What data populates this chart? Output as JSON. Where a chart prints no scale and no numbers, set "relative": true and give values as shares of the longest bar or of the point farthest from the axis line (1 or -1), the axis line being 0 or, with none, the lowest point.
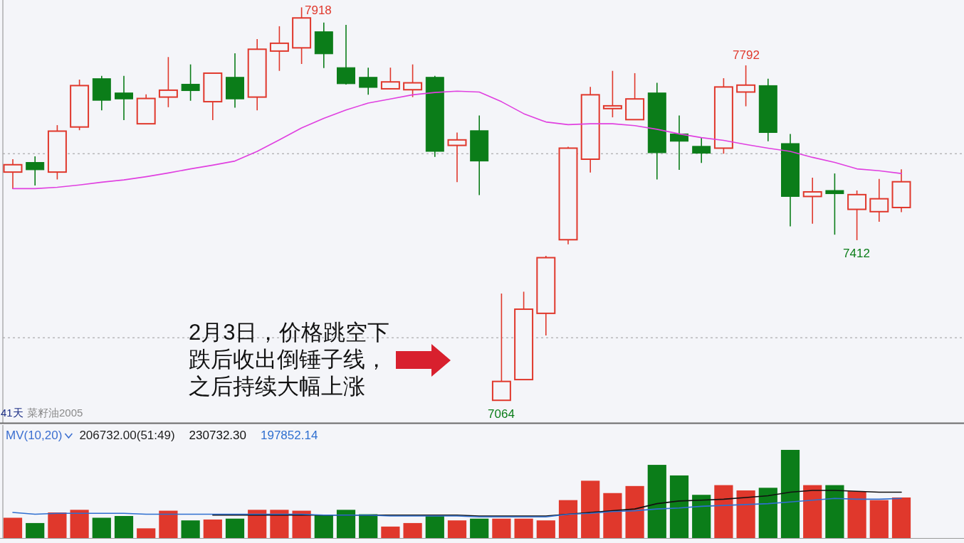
{
  "chart_data": [
    {
      "type": "candlestick",
      "categories": [
        null,
        null,
        null,
        null,
        null,
        null,
        null,
        null,
        null,
        null,
        null,
        null,
        null,
        null,
        null,
        null,
        null,
        null,
        null,
        null,
        null,
        null,
        null,
        null,
        null,
        null,
        null,
        null,
        null,
        null,
        null,
        null,
        null,
        null,
        null,
        null,
        null,
        null,
        null,
        null,
        null
      ],
      "ohlc": [
        [
          7560,
          7588,
          7523,
          7576
        ],
        [
          7581,
          7594,
          7531,
          7565
        ],
        [
          7560,
          7662,
          7544,
          7649
        ],
        [
          7658,
          7761,
          7651,
          7748
        ],
        [
          7763,
          7769,
          7694,
          7716
        ],
        [
          7732,
          7769,
          7673,
          7719
        ],
        [
          7665,
          7729,
          7664,
          7720
        ],
        [
          7723,
          7810,
          7701,
          7738
        ],
        [
          7751,
          7794,
          7715,
          7737
        ],
        [
          7713,
          7775,
          7673,
          7775
        ],
        [
          7766,
          7818,
          7700,
          7719
        ],
        [
          7723,
          7849,
          7694,
          7827
        ],
        [
          7823,
          7877,
          7780,
          7840
        ],
        [
          7830,
          7918,
          7795,
          7895
        ],
        [
          7865,
          7885,
          7786,
          7817
        ],
        [
          7787,
          7880,
          7750,
          7752
        ],
        [
          7766,
          7787,
          7728,
          7744
        ],
        [
          7741,
          7787,
          7740,
          7756
        ],
        [
          7739,
          7794,
          7723,
          7754
        ],
        [
          7766,
          7769,
          7593,
          7605
        ],
        [
          7618,
          7646,
          7538,
          7630
        ],
        [
          7650,
          7683,
          7510,
          7584
        ],
        [
          7064,
          7296,
          7064,
          7105
        ],
        [
          7109,
          7300,
          7108,
          7262
        ],
        [
          7253,
          7378,
          7205,
          7374
        ],
        [
          7413,
          7615,
          7403,
          7612
        ],
        [
          7588,
          7745,
          7559,
          7728
        ],
        [
          7698,
          7780,
          7679,
          7704
        ],
        [
          7674,
          7775,
          7673,
          7719
        ],
        [
          7732,
          7754,
          7544,
          7602
        ],
        [
          7643,
          7683,
          7565,
          7627
        ],
        [
          7616,
          7636,
          7580,
          7601
        ],
        [
          7612,
          7764,
          7600,
          7745
        ],
        [
          7734,
          7792,
          7703,
          7749
        ],
        [
          7748,
          7763,
          7627,
          7646
        ],
        [
          7622,
          7643,
          7442,
          7507
        ],
        [
          7507,
          7548,
          7448,
          7517
        ],
        [
          7520,
          7557,
          7424,
          7513
        ],
        [
          7479,
          7520,
          7412,
          7511
        ],
        [
          7474,
          7545,
          7452,
          7502
        ],
        [
          7483,
          7566,
          7473,
          7539
        ]
      ],
      "colors": [
        "#e0382c",
        "#0b7d19",
        "#e0382c",
        "#e0382c",
        "#0b7d19",
        "#0b7d19",
        "#e0382c",
        "#e0382c",
        "#0b7d19",
        "#e0382c",
        "#0b7d19",
        "#e0382c",
        "#e0382c",
        "#e0382c",
        "#0b7d19",
        "#0b7d19",
        "#0b7d19",
        "#e0382c",
        "#e0382c",
        "#0b7d19",
        "#e0382c",
        "#0b7d19",
        "#e0382c",
        "#e0382c",
        "#e0382c",
        "#e0382c",
        "#e0382c",
        "#e0382c",
        "#e0382c",
        "#0b7d19",
        "#0b7d19",
        "#0b7d19",
        "#e0382c",
        "#e0382c",
        "#0b7d19",
        "#0b7d19",
        "#e0382c",
        "#0b7d19",
        "#e0382c",
        "#e0382c",
        "#e0382c"
      ],
      "series": [
        {
          "type": "line",
          "color": "#e040e0",
          "values": [
            7524,
            7524,
            7527,
            7532,
            7538,
            7543,
            7550,
            7558,
            7567,
            7575,
            7584,
            7605,
            7630,
            7656,
            7677,
            7695,
            7710,
            7719,
            7728,
            7733,
            7736,
            7734,
            7713,
            7687,
            7669,
            7663,
            7665,
            7665,
            7661,
            7653,
            7643,
            7635,
            7629,
            7620,
            7612,
            7605,
            7592,
            7581,
            7567,
            7563,
            7557
          ]
        }
      ],
      "ylim": [
        7018,
        7934
      ],
      "yticks": [
        {
          "value": 7600,
          "label": null
        },
        {
          "value": 7200,
          "label": null
        }
      ],
      "grid": "y",
      "annotations": [
        "2月3日，价格跳空下跌后收出倒锤子线，之后持续大幅上涨",
        "41天",
        "菜籽油2005",
        "7918",
        "7792",
        "7412",
        "7064"
      ]
    },
    {
      "type": "bar",
      "relative": true,
      "title": "MV(10,20)",
      "legend": "top left",
      "categories": [
        null,
        null,
        null,
        null,
        null,
        null,
        null,
        null,
        null,
        null,
        null,
        null,
        null,
        null,
        null,
        null,
        null,
        null,
        null,
        null,
        null,
        null,
        null,
        null,
        null,
        null,
        null,
        null,
        null,
        null,
        null,
        null,
        null,
        null,
        null,
        null,
        null,
        null,
        null,
        null,
        null
      ],
      "series": [
        {
          "type": "bar",
          "values": [
            0.23,
            0.17,
            0.29,
            0.32,
            0.23,
            0.25,
            0.11,
            0.31,
            0.2,
            0.21,
            0.22,
            0.32,
            0.32,
            0.31,
            0.26,
            0.32,
            0.27,
            0.13,
            0.17,
            0.25,
            0.2,
            0.22,
            0.22,
            0.22,
            0.2,
            0.43,
            0.65,
            0.51,
            0.59,
            0.83,
            0.71,
            0.49,
            0.6,
            0.54,
            0.57,
            1,
            0.6,
            0.6,
            0.53,
            0.43,
            0.46
          ],
          "colors": [
            "#e0382c",
            "#0b7d19",
            "#e0382c",
            "#e0382c",
            "#0b7d19",
            "#0b7d19",
            "#e0382c",
            "#e0382c",
            "#0b7d19",
            "#e0382c",
            "#0b7d19",
            "#e0382c",
            "#e0382c",
            "#e0382c",
            "#0b7d19",
            "#0b7d19",
            "#0b7d19",
            "#e0382c",
            "#e0382c",
            "#0b7d19",
            "#e0382c",
            "#0b7d19",
            "#e0382c",
            "#e0382c",
            "#e0382c",
            "#e0382c",
            "#e0382c",
            "#e0382c",
            "#e0382c",
            "#0b7d19",
            "#0b7d19",
            "#0b7d19",
            "#e0382c",
            "#e0382c",
            "#0b7d19",
            "#0b7d19",
            "#e0382c",
            "#0b7d19",
            "#e0382c",
            "#e0382c",
            "#e0382c"
          ]
        },
        {
          "type": "line",
          "name": "230732.30",
          "color": "#111111",
          "values": [
            null,
            null,
            null,
            null,
            null,
            null,
            null,
            null,
            null,
            0.26,
            0.26,
            0.26,
            0.26,
            0.26,
            0.26,
            0.26,
            0.26,
            0.26,
            0.26,
            0.26,
            0.26,
            0.25,
            0.25,
            0.25,
            0.25,
            0.27,
            0.29,
            0.31,
            0.33,
            0.39,
            0.42,
            0.43,
            0.44,
            0.46,
            0.48,
            0.52,
            0.54,
            0.54,
            0.53,
            0.52,
            0.52
          ]
        },
        {
          "type": "line",
          "name": "197852.14",
          "color": "#2f6fd0",
          "values": [
            0.29,
            0.27,
            0.28,
            0.28,
            0.28,
            0.28,
            0.27,
            0.27,
            0.27,
            0.27,
            0.27,
            0.27,
            0.27,
            0.27,
            0.26,
            0.26,
            0.26,
            0.25,
            0.25,
            0.25,
            0.25,
            0.24,
            0.24,
            0.24,
            0.24,
            0.27,
            0.28,
            0.3,
            0.31,
            0.33,
            0.34,
            0.36,
            0.37,
            0.38,
            0.39,
            0.41,
            0.43,
            0.45,
            0.44,
            0.44,
            0.45
          ]
        }
      ],
      "annotations": [
        "206732.00(51:49)"
      ]
    }
  ]
}
